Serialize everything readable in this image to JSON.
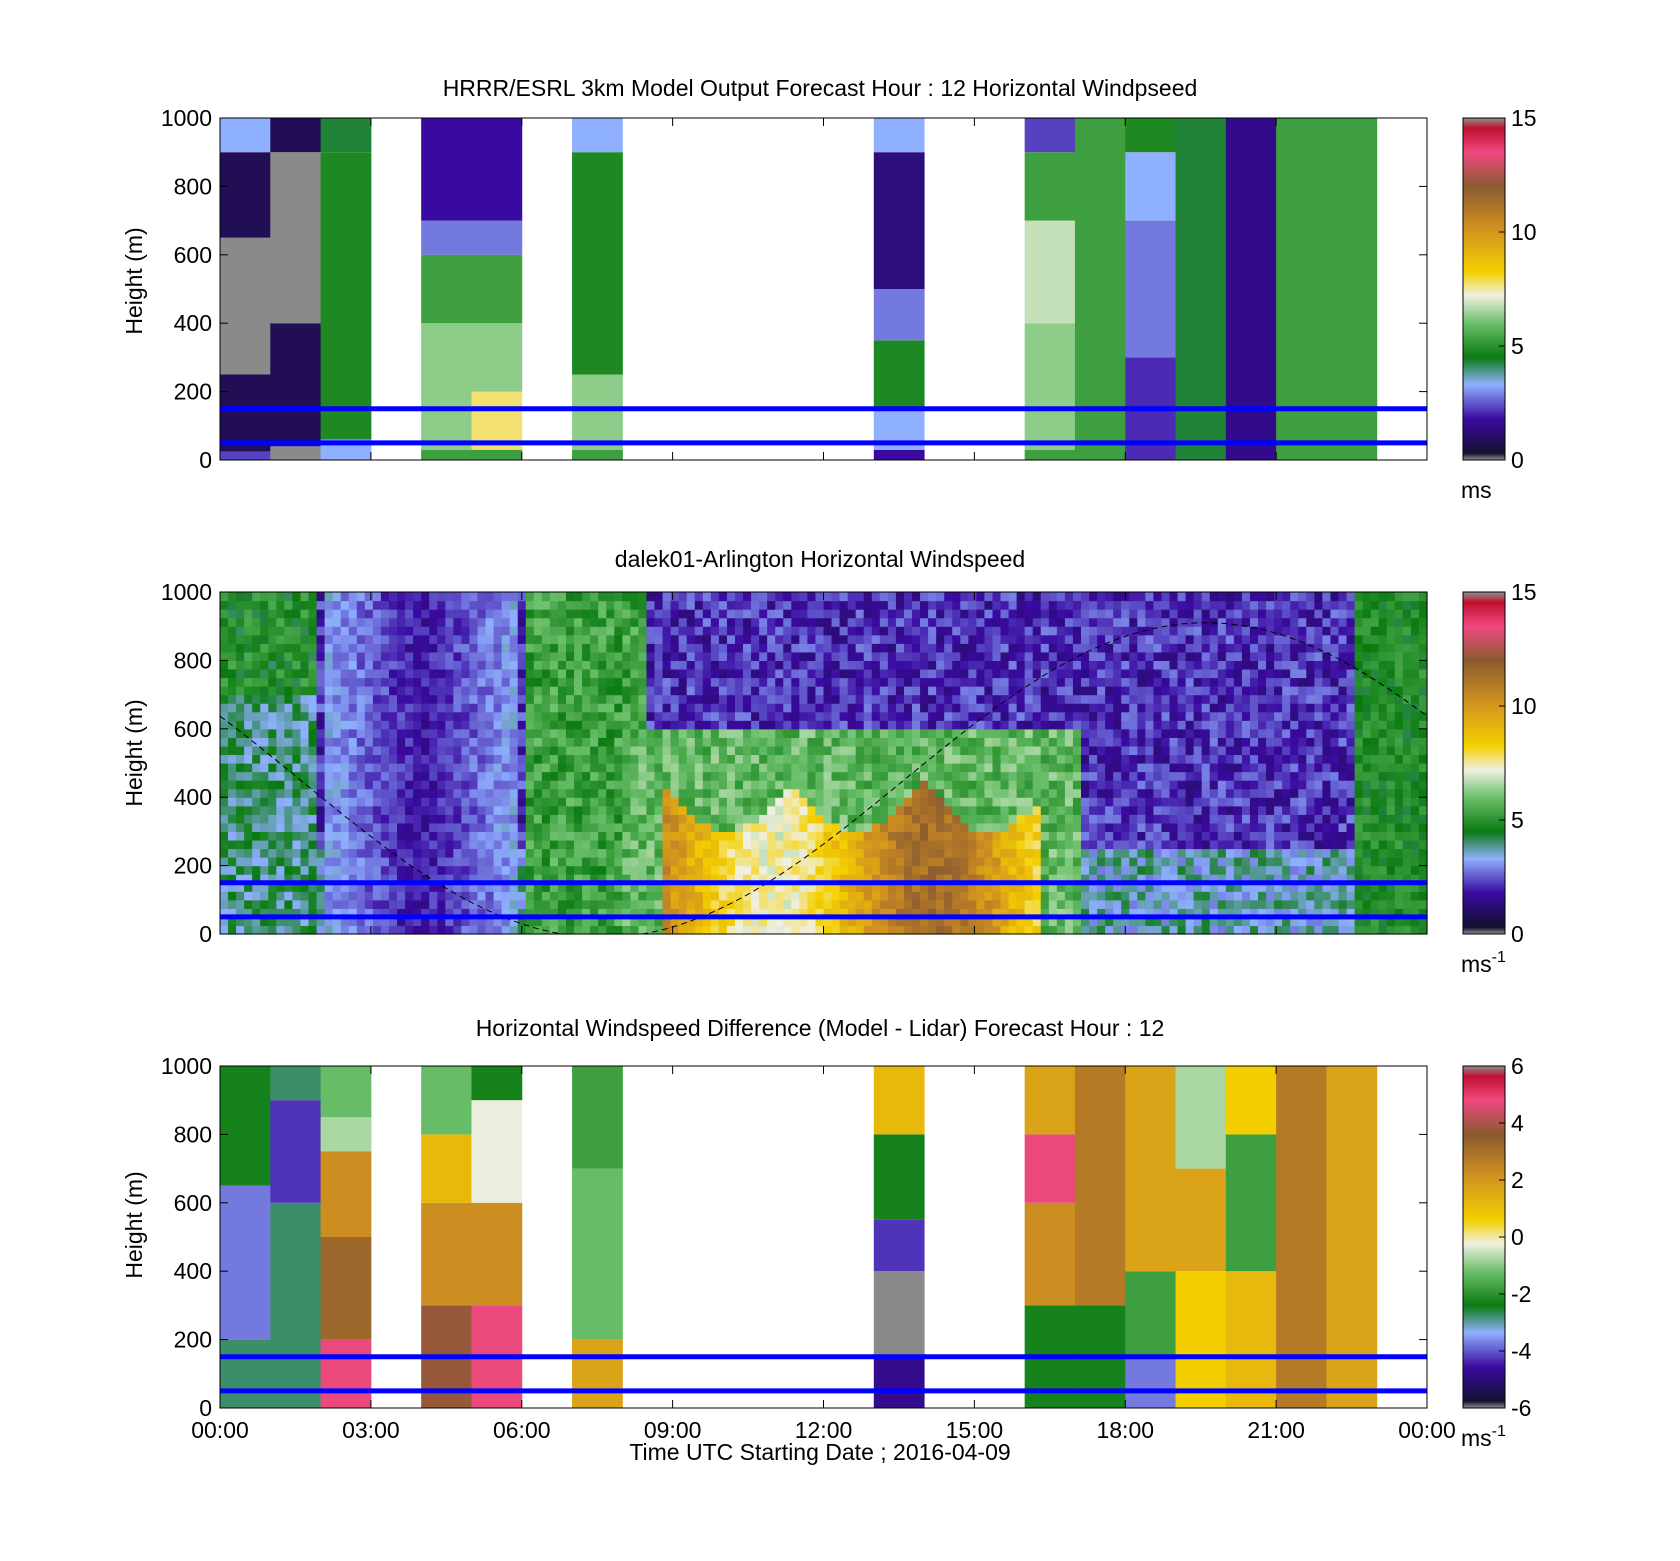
{
  "figure": {
    "xlabel": "Time UTC  Starting Date ; 2016-04-09",
    "xtick_labels": [
      "00:00",
      "03:00",
      "06:00",
      "09:00",
      "12:00",
      "15:00",
      "18:00",
      "21:00",
      "00:00"
    ],
    "ytick_labels": [
      "0",
      "200",
      "400",
      "600",
      "800",
      "1000"
    ]
  },
  "palette": {
    "colormap": [
      "#202020",
      "#2a0a4a",
      "#4b0fb0",
      "#6a5ad8",
      "#8fa8ff",
      "#3aa0c0",
      "#0a7a10",
      "#1e9a1e",
      "#4cb04c",
      "#9ad09a",
      "#e8f0e0",
      "#f4d000",
      "#e0a000",
      "#b07020",
      "#8a5a30",
      "#e85080",
      "#c02040",
      "#909090"
    ],
    "reference_lines": "#0000ff"
  },
  "chart_data": [
    {
      "type": "heatmap",
      "title": "HRRR/ESRL 3km Model Output   Forecast Hour : 12 Horizontal Windpseed",
      "ylabel": "Height (m)",
      "xlabel": "",
      "ylim": [
        0,
        1000
      ],
      "colorbar": {
        "min": 0,
        "max": 15,
        "ticks": [
          "0",
          "5",
          "10",
          "15"
        ],
        "unit": "ms"
      },
      "reference_lines_m": [
        50,
        150
      ],
      "columns": [
        {
          "t": "00:00",
          "values": [
            [
              0,
              25,
              2
            ],
            [
              25,
              250,
              0.5
            ],
            [
              250,
              650,
              14.8
            ],
            [
              650,
              900,
              0.5
            ],
            [
              900,
              1000,
              3
            ]
          ]
        },
        {
          "t": "01:00",
          "values": [
            [
              0,
              40,
              14.8
            ],
            [
              40,
              400,
              0.5
            ],
            [
              400,
              900,
              14.8
            ],
            [
              900,
              1000,
              0.5
            ]
          ]
        },
        {
          "t": "02:00",
          "values": [
            [
              0,
              60,
              3
            ],
            [
              60,
              900,
              4.5
            ],
            [
              900,
              1000,
              4
            ]
          ]
        },
        {
          "t": "04:00",
          "values": [
            [
              0,
              30,
              5
            ],
            [
              30,
              400,
              6
            ],
            [
              400,
              600,
              5
            ],
            [
              600,
              700,
              2.5
            ],
            [
              700,
              1000,
              1.5
            ]
          ]
        },
        {
          "t": "05:00",
          "values": [
            [
              0,
              30,
              5
            ],
            [
              30,
              200,
              7.5
            ],
            [
              200,
              400,
              6
            ],
            [
              400,
              600,
              5
            ],
            [
              600,
              700,
              2.5
            ],
            [
              700,
              1000,
              1.5
            ]
          ]
        },
        {
          "t": "07:00",
          "values": [
            [
              0,
              30,
              5
            ],
            [
              30,
              250,
              6
            ],
            [
              250,
              900,
              4.5
            ],
            [
              900,
              1000,
              3
            ]
          ]
        },
        {
          "t": "13:00",
          "values": [
            [
              0,
              30,
              1.5
            ],
            [
              30,
              150,
              3
            ],
            [
              150,
              350,
              4.5
            ],
            [
              350,
              500,
              2.5
            ],
            [
              500,
              900,
              1
            ],
            [
              900,
              1000,
              3
            ]
          ]
        },
        {
          "t": "16:00",
          "values": [
            [
              0,
              30,
              5
            ],
            [
              30,
              400,
              6
            ],
            [
              400,
              700,
              6.5
            ],
            [
              700,
              900,
              5
            ],
            [
              900,
              1000,
              2
            ]
          ]
        },
        {
          "t": "17:00",
          "values": [
            [
              0,
              1000,
              5
            ]
          ]
        },
        {
          "t": "18:00",
          "values": [
            [
              0,
              300,
              1.8
            ],
            [
              300,
              700,
              2.5
            ],
            [
              700,
              900,
              3
            ],
            [
              900,
              1000,
              4.5
            ]
          ]
        },
        {
          "t": "19:00",
          "values": [
            [
              0,
              1000,
              4
            ]
          ]
        },
        {
          "t": "20:00",
          "values": [
            [
              0,
              1000,
              1.2
            ]
          ]
        },
        {
          "t": "21:00",
          "values": [
            [
              0,
              1000,
              5
            ]
          ]
        },
        {
          "t": "22:00",
          "values": [
            [
              0,
              1000,
              5
            ]
          ]
        }
      ]
    },
    {
      "type": "heatmap",
      "title": "dalek01-Arlington  Horizontal Windspeed",
      "ylabel": "Height (m)",
      "xlabel": "",
      "ylim": [
        0,
        1000
      ],
      "colorbar": {
        "min": 0,
        "max": 15,
        "ticks": [
          "0",
          "5",
          "10",
          "15"
        ],
        "unit": "ms",
        "unit_exponent": "-1"
      },
      "reference_lines_m": [
        50,
        150
      ],
      "solar_curve": true,
      "jet_region": {
        "t_start": "08:45",
        "t_end": "16:15",
        "top_m": 450,
        "max_speed": 11
      }
    },
    {
      "type": "heatmap",
      "title": "Horizontal Windspeed Difference (Model - Lidar) Forecast Hour : 12",
      "ylabel": "Height (m)",
      "xlabel": "Time UTC  Starting Date ; 2016-04-09",
      "ylim": [
        0,
        1000
      ],
      "colorbar": {
        "min": -6,
        "max": 6,
        "ticks": [
          "-6",
          "-4",
          "-2",
          "0",
          "2",
          "4",
          "6"
        ],
        "unit": "ms",
        "unit_exponent": "-1"
      },
      "reference_lines_m": [
        50,
        150
      ],
      "columns": [
        {
          "t": "00:00",
          "values": [
            [
              0,
              200,
              -3
            ],
            [
              200,
              650,
              -4
            ],
            [
              650,
              1000,
              -2.5
            ]
          ]
        },
        {
          "t": "01:00",
          "values": [
            [
              0,
              600,
              -3
            ],
            [
              600,
              900,
              -4.5
            ],
            [
              900,
              1000,
              -3
            ]
          ]
        },
        {
          "t": "02:00",
          "values": [
            [
              0,
              200,
              4.5
            ],
            [
              200,
              500,
              3
            ],
            [
              500,
              750,
              2
            ],
            [
              750,
              850,
              -1
            ],
            [
              850,
              1000,
              -1.5
            ]
          ]
        },
        {
          "t": "04:00",
          "values": [
            [
              0,
              300,
              3.5
            ],
            [
              300,
              600,
              2
            ],
            [
              600,
              800,
              1
            ],
            [
              800,
              1000,
              -1.5
            ]
          ]
        },
        {
          "t": "05:00",
          "values": [
            [
              0,
              300,
              4.5
            ],
            [
              300,
              600,
              2
            ],
            [
              600,
              900,
              -0.5
            ],
            [
              900,
              1000,
              -2.5
            ]
          ]
        },
        {
          "t": "07:00",
          "values": [
            [
              0,
              200,
              1.5
            ],
            [
              200,
              700,
              -1.5
            ],
            [
              700,
              1000,
              -2
            ]
          ]
        },
        {
          "t": "13:00",
          "values": [
            [
              0,
              150,
              -5
            ],
            [
              150,
              400,
              7
            ],
            [
              400,
              550,
              -4.5
            ],
            [
              550,
              800,
              -2.5
            ],
            [
              800,
              1000,
              1
            ]
          ]
        },
        {
          "t": "16:00",
          "values": [
            [
              0,
              300,
              -2.5
            ],
            [
              300,
              600,
              2
            ],
            [
              600,
              800,
              4.5
            ],
            [
              800,
              1000,
              1.5
            ]
          ]
        },
        {
          "t": "17:00",
          "values": [
            [
              0,
              300,
              -2.5
            ],
            [
              300,
              1000,
              2.5
            ]
          ]
        },
        {
          "t": "18:00",
          "values": [
            [
              0,
              150,
              -4
            ],
            [
              150,
              400,
              -2
            ],
            [
              400,
              1000,
              1.5
            ]
          ]
        },
        {
          "t": "19:00",
          "values": [
            [
              0,
              400,
              0.5
            ],
            [
              400,
              700,
              1.5
            ],
            [
              700,
              1000,
              -1
            ]
          ]
        },
        {
          "t": "20:00",
          "values": [
            [
              0,
              400,
              1
            ],
            [
              400,
              800,
              -2
            ],
            [
              800,
              1000,
              0.5
            ]
          ]
        },
        {
          "t": "21:00",
          "values": [
            [
              0,
              1000,
              2.5
            ]
          ]
        },
        {
          "t": "22:00",
          "values": [
            [
              0,
              1000,
              1.5
            ]
          ]
        }
      ]
    }
  ]
}
